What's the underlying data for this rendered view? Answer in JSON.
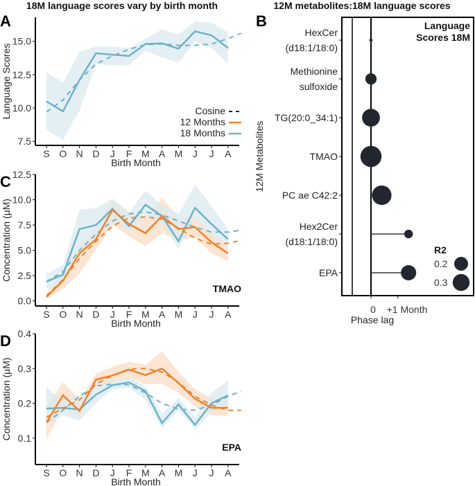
{
  "titles": {
    "left": "18M language scores vary by birth month",
    "right": "12M metabolites:18M language scores"
  },
  "panel_letters": [
    "A",
    "B",
    "C",
    "D"
  ],
  "colors": {
    "m12": "#f08228",
    "m18": "#6fb1c8",
    "m18_band": "#dbe9f0",
    "m12_band": "#fbdcc3",
    "dots": "#22262e"
  },
  "legend": {
    "cosine": "Cosine",
    "m12": "12 Months",
    "m18": "18 Months"
  },
  "chart_data": [
    {
      "type": "line",
      "panel": "A",
      "ylabel": "Language Scores",
      "xlabel": "Birth Month",
      "categories": [
        "S",
        "O",
        "N",
        "D",
        "J",
        "F",
        "M",
        "A",
        "M",
        "J",
        "J",
        "A"
      ],
      "yticks": [
        7.5,
        10.0,
        12.5,
        15.0
      ],
      "ylim": [
        7.2,
        16.8
      ],
      "series": [
        {
          "name": "18 Months",
          "values": [
            10.5,
            9.75,
            12.1,
            14.1,
            14.0,
            13.9,
            14.8,
            14.85,
            14.45,
            15.75,
            15.45,
            14.5
          ],
          "upper": [
            12.7,
            11.9,
            14.2,
            14.6,
            14.6,
            14.5,
            15.2,
            15.9,
            15.5,
            16.5,
            16.4,
            15.7
          ],
          "lower": [
            8.4,
            7.6,
            9.8,
            13.3,
            13.2,
            13.2,
            14.3,
            13.8,
            13.4,
            15.0,
            14.5,
            13.3
          ],
          "cosine": [
            9.7,
            10.6,
            12.1,
            13.3,
            13.9,
            14.4,
            14.75,
            14.8,
            14.7,
            14.7,
            14.8,
            15.2,
            15.6
          ]
        }
      ]
    },
    {
      "type": "line",
      "panel": "C",
      "ylabel": "Concentration (µM)",
      "xlabel": "Birth Month",
      "annotation": "TMAO",
      "categories": [
        "S",
        "O",
        "N",
        "D",
        "J",
        "F",
        "M",
        "A",
        "M",
        "J",
        "J",
        "A"
      ],
      "yticks": [
        0.0,
        2.5,
        5.0,
        7.5,
        10.0,
        12.5
      ],
      "ylim": [
        -0.5,
        12.5
      ],
      "series": [
        {
          "name": "18 Months",
          "values": [
            1.9,
            2.6,
            7.1,
            7.5,
            9.1,
            7.4,
            9.5,
            8.4,
            5.9,
            9.2,
            7.6,
            6.1
          ],
          "upper": [
            2.7,
            3.5,
            9.0,
            9.2,
            10.1,
            8.7,
            10.9,
            9.5,
            8.6,
            11.5,
            9.4,
            7.1
          ],
          "lower": [
            1.2,
            1.7,
            5.0,
            6.2,
            8.0,
            6.8,
            8.3,
            7.6,
            5.2,
            8.2,
            6.5,
            5.4
          ],
          "cosine": [
            1.9,
            2.9,
            5.0,
            6.6,
            7.9,
            8.6,
            8.8,
            8.5,
            7.9,
            7.3,
            6.8,
            6.8,
            7.0
          ]
        },
        {
          "name": "12 Months",
          "values": [
            0.4,
            2.0,
            4.7,
            6.1,
            9.0,
            7.6,
            6.7,
            8.4,
            7.1,
            7.3,
            5.8,
            4.7
          ],
          "upper": [
            0.8,
            2.8,
            5.5,
            7.2,
            10.1,
            8.8,
            8.2,
            10.2,
            8.2,
            8.3,
            6.8,
            5.4
          ],
          "lower": [
            0.2,
            1.2,
            2.7,
            5.1,
            7.5,
            6.4,
            5.4,
            6.7,
            6.0,
            6.3,
            4.7,
            3.9
          ],
          "cosine": [
            0.5,
            2.1,
            4.2,
            5.9,
            7.4,
            8.2,
            8.3,
            8.1,
            7.2,
            6.2,
            5.6,
            5.7,
            6.0
          ]
        }
      ]
    },
    {
      "type": "line",
      "panel": "D",
      "ylabel": "Concentration (µM)",
      "xlabel": "Birth Month",
      "annotation": "EPA",
      "categories": [
        "S",
        "O",
        "N",
        "D",
        "J",
        "F",
        "M",
        "A",
        "M",
        "J",
        "J",
        "A"
      ],
      "yticks": [
        0.1,
        0.2,
        0.3,
        0.4
      ],
      "ylim": [
        0.024,
        0.4
      ],
      "series": [
        {
          "name": "18 Months",
          "values": [
            0.185,
            0.187,
            0.182,
            0.225,
            0.252,
            0.26,
            0.235,
            0.143,
            0.197,
            0.138,
            0.2,
            0.223
          ],
          "upper": [
            0.245,
            0.21,
            0.225,
            0.25,
            0.265,
            0.275,
            0.25,
            0.17,
            0.215,
            0.16,
            0.23,
            0.265
          ],
          "lower": [
            0.14,
            0.165,
            0.15,
            0.2,
            0.24,
            0.245,
            0.21,
            0.13,
            0.18,
            0.125,
            0.175,
            0.195
          ],
          "cosine": [
            0.145,
            0.18,
            0.22,
            0.25,
            0.255,
            0.253,
            0.23,
            0.2,
            0.183,
            0.18,
            0.195,
            0.22,
            0.235
          ]
        },
        {
          "name": "12 Months",
          "values": [
            0.145,
            0.223,
            0.178,
            0.268,
            0.28,
            0.297,
            0.281,
            0.3,
            0.258,
            0.213,
            0.187,
            0.187
          ],
          "upper": [
            0.19,
            0.26,
            0.21,
            0.285,
            0.305,
            0.32,
            0.31,
            0.35,
            0.29,
            0.24,
            0.215,
            0.21
          ],
          "lower": [
            0.095,
            0.185,
            0.16,
            0.245,
            0.26,
            0.275,
            0.255,
            0.255,
            0.23,
            0.19,
            0.165,
            0.165
          ],
          "cosine": [
            0.16,
            0.185,
            0.21,
            0.255,
            0.28,
            0.298,
            0.3,
            0.29,
            0.26,
            0.22,
            0.195,
            0.18,
            0.18
          ]
        }
      ]
    },
    {
      "type": "scatter",
      "panel": "B",
      "ylabel": "12M Metabolites",
      "xlabel": "Phase lag",
      "xticks": [
        "0",
        "+1 Month"
      ],
      "annotation": "Language Scores 18M",
      "size_legend_title": "R2",
      "size_legend": [
        0.2,
        0.3
      ],
      "metabolites": [
        {
          "name": "HexCer (d18:1/18:0)",
          "lines": [
            "HexCer",
            "(d18:1/18:0)"
          ],
          "lag": 0,
          "r2": 0.01
        },
        {
          "name": "Methionine sulfoxide",
          "lines": [
            "Methionine",
            "sulfoxide"
          ],
          "lag": 0,
          "r2": 0.12
        },
        {
          "name": "TG(20:0_34:1)",
          "lines": [
            "TG(20:0_34:1)"
          ],
          "lag": 0,
          "r2": 0.3
        },
        {
          "name": "TMAO",
          "lines": [
            "TMAO"
          ],
          "lag": 0,
          "r2": 0.42
        },
        {
          "name": "PC ae C42:2",
          "lines": [
            "PC ae C42:2"
          ],
          "lag": 0.4,
          "r2": 0.36
        },
        {
          "name": "Hex2Cer (d18:1/18:0)",
          "lines": [
            "Hex2Cer",
            "(d18:1/18:0)"
          ],
          "lag": 1.4,
          "r2": 0.07
        },
        {
          "name": "EPA",
          "lines": [
            "EPA"
          ],
          "lag": 1.4,
          "r2": 0.22
        }
      ]
    }
  ]
}
